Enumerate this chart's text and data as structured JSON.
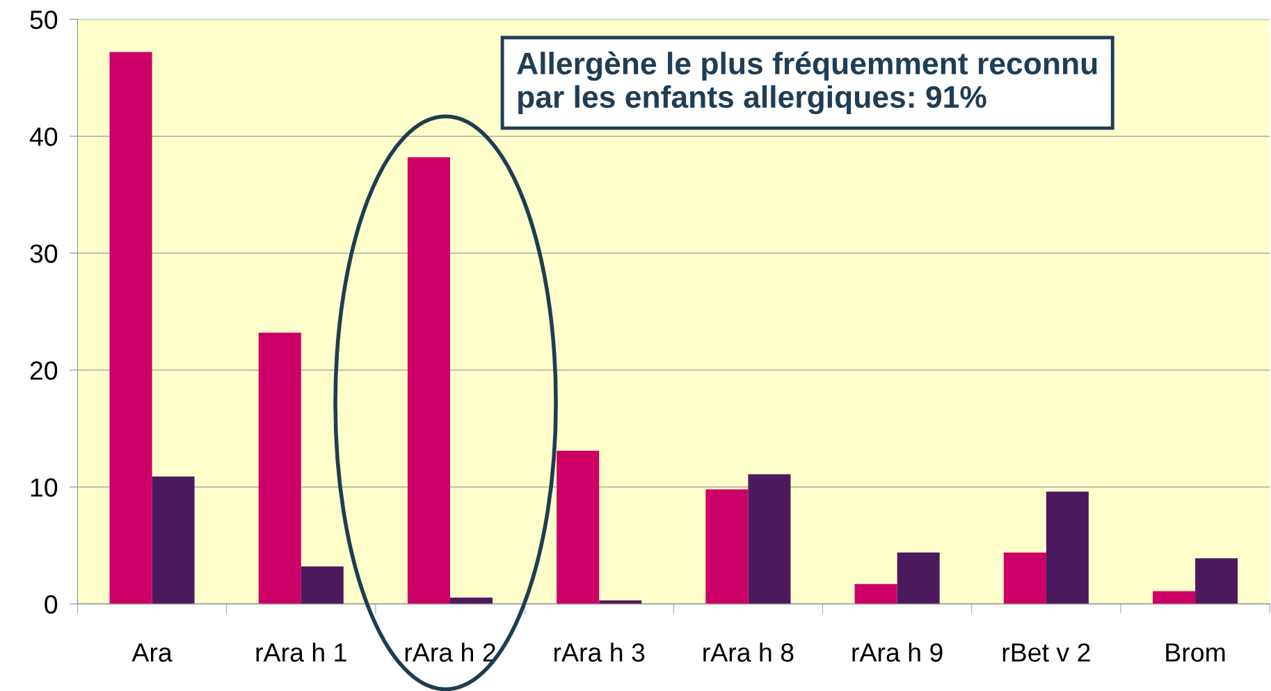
{
  "chart_data": {
    "type": "bar",
    "categories": [
      "Ara",
      "rAra h 1",
      "rAra h 2",
      "rAra h 3",
      "rAra h 8",
      "rAra h 9",
      "rBet v 2",
      "Brom"
    ],
    "series": [
      {
        "color": "#cc0066",
        "values": [
          47.2,
          23.2,
          38.2,
          13.1,
          9.8,
          1.7,
          4.4,
          1.1
        ]
      },
      {
        "color": "#4b1a5e",
        "values": [
          10.9,
          3.2,
          0.55,
          0.3,
          11.1,
          4.4,
          9.6,
          3.9
        ]
      }
    ],
    "ylim": [
      0,
      50
    ],
    "yticks": [
      0,
      10,
      20,
      30,
      40,
      50
    ],
    "grid": "y",
    "legend": false,
    "annotations": [
      "Allergène le plus fréquemment reconnu\npar les enfants allergiques: 91%"
    ]
  }
}
